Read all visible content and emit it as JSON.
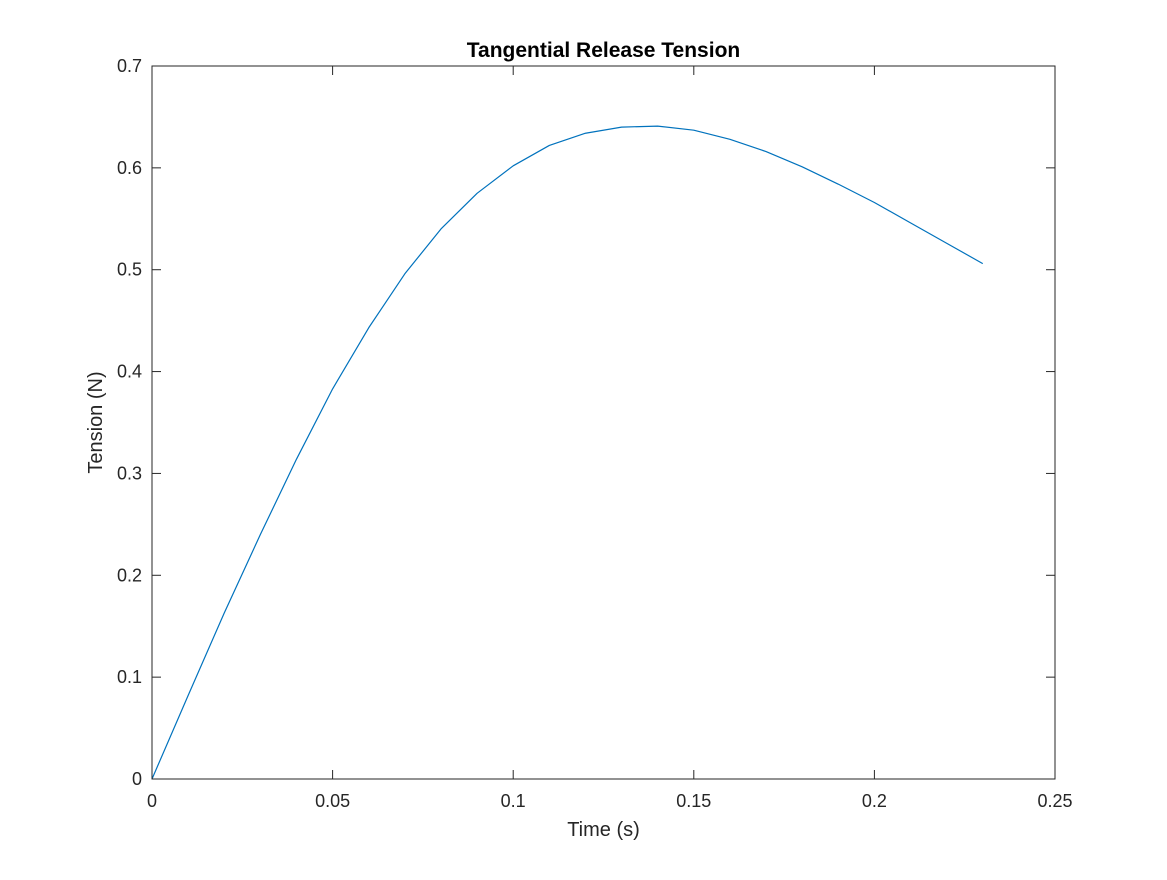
{
  "chart_data": {
    "type": "line",
    "title": "Tangential Release Tension",
    "xlabel": "Time (s)",
    "ylabel": "Tension (N)",
    "xlim": [
      0,
      0.25
    ],
    "ylim": [
      0,
      0.7
    ],
    "xticks": [
      0,
      0.05,
      0.1,
      0.15,
      0.2,
      0.25
    ],
    "yticks": [
      0,
      0.1,
      0.2,
      0.3,
      0.4,
      0.5,
      0.6,
      0.7
    ],
    "xtick_labels": [
      "0",
      "0.05",
      "0.1",
      "0.15",
      "0.2",
      "0.25"
    ],
    "ytick_labels": [
      "0",
      "0.1",
      "0.2",
      "0.3",
      "0.4",
      "0.5",
      "0.6",
      "0.7"
    ],
    "grid": false,
    "box": true,
    "series": [
      {
        "color": "#0072bd",
        "x": [
          0,
          0.01,
          0.02,
          0.03,
          0.04,
          0.05,
          0.06,
          0.07,
          0.08,
          0.09,
          0.1,
          0.11,
          0.12,
          0.13,
          0.14,
          0.15,
          0.16,
          0.17,
          0.18,
          0.19,
          0.2,
          0.21,
          0.22,
          0.23
        ],
        "y": [
          0,
          0.082,
          0.163,
          0.24,
          0.314,
          0.383,
          0.443,
          0.496,
          0.54,
          0.575,
          0.602,
          0.622,
          0.634,
          0.64,
          0.641,
          0.637,
          0.628,
          0.616,
          0.601,
          0.584,
          0.566,
          0.546,
          0.526,
          0.506
        ]
      }
    ]
  }
}
